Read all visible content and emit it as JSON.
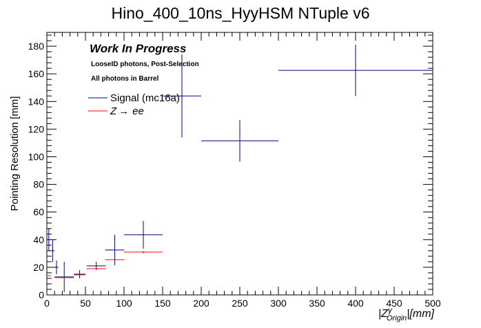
{
  "chart_data": {
    "type": "scatter",
    "title": "Hino_400_10ns_HyyHSM NTuple v6",
    "xlabel_main": "|Z",
    "xlabel_sup": "γ",
    "xlabel_sub": "Origin",
    "xlabel_tail": "|[mm]",
    "ylabel": "Pointing Resolution [mm]",
    "xlim": [
      0,
      500
    ],
    "ylim": [
      0,
      190
    ],
    "x_ticks": [
      0,
      50,
      100,
      150,
      200,
      250,
      300,
      350,
      400,
      450,
      500
    ],
    "y_ticks": [
      0,
      20,
      40,
      60,
      80,
      100,
      120,
      140,
      160,
      180
    ],
    "annotations": {
      "headline": "Work In Progress",
      "line1": "LooseID photons, Post-Selection",
      "line2": "All photons in Barrel"
    },
    "series": [
      {
        "name": "Signal (mc16a)",
        "color": "#00007f",
        "points": [
          {
            "x": 2.5,
            "xerr": 2.5,
            "y": 40,
            "yerr": 8
          },
          {
            "x": 7.5,
            "xerr": 2.5,
            "y": 32,
            "yerr": 8
          },
          {
            "x": 12.5,
            "xerr": 2.5,
            "y": 20,
            "yerr": 5
          },
          {
            "x": 22.5,
            "xerr": 12.5,
            "y": 13,
            "yerr": 11
          },
          {
            "x": 42.5,
            "xerr": 7.5,
            "y": 15,
            "yerr": 3
          },
          {
            "x": 64,
            "xerr": 12.5,
            "y": 21,
            "yerr": 3
          },
          {
            "x": 88,
            "xerr": 12.5,
            "y": 32.5,
            "yerr": 11
          },
          {
            "x": 125,
            "xerr": 25,
            "y": 43.5,
            "yerr": 10
          },
          {
            "x": 175,
            "xerr": 25,
            "y": 144,
            "yerr": 30
          },
          {
            "x": 250,
            "xerr": 50,
            "y": 111.5,
            "yerr": 15
          },
          {
            "x": 400,
            "xerr": 100,
            "y": 162.5,
            "yerr": 18.5
          }
        ]
      },
      {
        "name": "Z → ee",
        "name_prefix": "Z",
        "name_arrow": "→",
        "name_suffix": "ee",
        "color": "#ff0000",
        "points": [
          {
            "x": 2.5,
            "xerr": 2.5,
            "y": 14,
            "yerr": 0.3
          },
          {
            "x": 22.5,
            "xerr": 12.5,
            "y": 12.5,
            "yerr": 0.3
          },
          {
            "x": 42.5,
            "xerr": 7.5,
            "y": 14.5,
            "yerr": 0.3
          },
          {
            "x": 64,
            "xerr": 12.5,
            "y": 19,
            "yerr": 0.4
          },
          {
            "x": 88,
            "xerr": 12.5,
            "y": 25.5,
            "yerr": 0.6
          },
          {
            "x": 125,
            "xerr": 25,
            "y": 31,
            "yerr": 0.8
          }
        ]
      }
    ]
  }
}
